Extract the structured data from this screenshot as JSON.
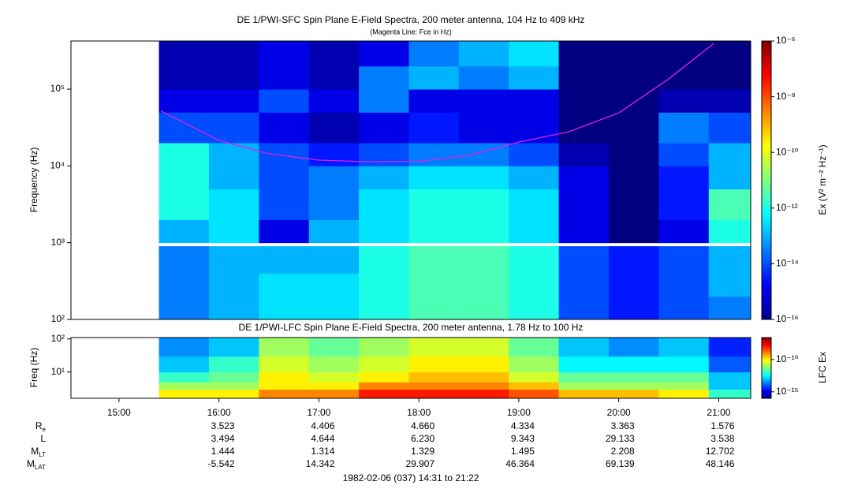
{
  "chart_data": [
    {
      "type": "heatmap",
      "title": "DE 1/PWI-SFC  Spin Plane E-Field Spectra, 200 meter antenna, 104 Hz to 409 kHz",
      "subtitle": "(Magenta Line: Fce in Hz)",
      "y_label": "Frequency (Hz)",
      "ylog": true,
      "xlim": [
        14.52,
        21.32
      ],
      "ylim": [
        100,
        424000
      ],
      "yticks": [
        {
          "value": 100,
          "label": "10²"
        },
        {
          "value": 1000,
          "label": "10³"
        },
        {
          "value": 10000,
          "label": "10⁴"
        },
        {
          "value": 100000,
          "label": "10⁵"
        }
      ],
      "x_bins": [
        15.4,
        15.9,
        16.4,
        16.9,
        17.4,
        17.9,
        18.4,
        18.9,
        19.4,
        19.9,
        20.4,
        20.9,
        21.32
      ],
      "y_bins": [
        100,
        200,
        400,
        900,
        1000,
        2000,
        5000,
        10000,
        20000,
        50000,
        100000,
        200000,
        424000
      ],
      "values": [
        [
          3e-14,
          1e-13,
          3e-13,
          3e-13,
          1e-12,
          3e-12,
          3e-12,
          1e-12,
          1e-14,
          3e-15,
          1e-14,
          3e-14
        ],
        [
          3e-14,
          1e-13,
          3e-13,
          3e-13,
          1e-12,
          3e-12,
          3e-12,
          1e-12,
          1e-14,
          3e-15,
          1e-14,
          1e-13
        ],
        [
          3e-14,
          1e-13,
          1e-13,
          1e-13,
          1e-12,
          3e-12,
          3e-12,
          1e-12,
          1e-14,
          3e-15,
          1e-14,
          1e-13
        ],
        [
          null,
          null,
          null,
          null,
          null,
          null,
          null,
          null,
          null,
          null,
          null,
          null
        ],
        [
          1e-13,
          3e-13,
          1e-15,
          1e-13,
          3e-13,
          1e-12,
          1e-12,
          3e-13,
          1e-15,
          1e-16,
          1e-15,
          1e-12
        ],
        [
          1e-12,
          3e-13,
          1e-14,
          3e-14,
          3e-13,
          1e-12,
          1e-12,
          3e-13,
          1e-15,
          1e-16,
          3e-15,
          3e-12
        ],
        [
          1e-12,
          1e-13,
          1e-14,
          3e-14,
          1e-13,
          3e-13,
          3e-13,
          1e-13,
          1e-15,
          1e-16,
          3e-15,
          1e-13
        ],
        [
          1e-12,
          1e-13,
          1e-14,
          3e-15,
          1e-14,
          3e-14,
          3e-14,
          1e-14,
          3e-16,
          1e-16,
          1e-14,
          1e-13
        ],
        [
          1e-14,
          1e-14,
          1e-15,
          3e-16,
          1e-15,
          3e-15,
          1e-15,
          1e-15,
          1e-16,
          1e-16,
          3e-14,
          1e-14
        ],
        [
          1e-15,
          1e-15,
          1e-14,
          1e-15,
          3e-14,
          1e-15,
          1e-15,
          1e-15,
          1e-16,
          1e-16,
          3e-16,
          3e-16
        ],
        [
          3e-16,
          3e-16,
          1e-15,
          3e-16,
          3e-14,
          1e-13,
          3e-14,
          1e-13,
          1e-16,
          1e-16,
          1e-16,
          1e-16
        ],
        [
          3e-16,
          3e-16,
          1e-15,
          3e-16,
          1e-15,
          3e-14,
          1e-13,
          3e-13,
          1e-16,
          1e-16,
          1e-16,
          1e-16
        ]
      ],
      "clim": [
        1e-16,
        1e-06
      ],
      "cticks": [
        {
          "value": 1e-16,
          "label": "10⁻¹⁶"
        },
        {
          "value": 1e-14,
          "label": "10⁻¹⁴"
        },
        {
          "value": 1e-12,
          "label": "10⁻¹²"
        },
        {
          "value": 1e-10,
          "label": "10⁻¹⁰"
        },
        {
          "value": 1e-08,
          "label": "10⁻⁸"
        },
        {
          "value": 1e-06,
          "label": "10⁻⁶"
        }
      ],
      "colorbar_label": "Ex (V² m⁻² Hz⁻¹)",
      "series": [
        {
          "color": "#e020e0",
          "x": [
            15.42,
            16.0,
            16.5,
            17.0,
            17.5,
            18.0,
            18.5,
            19.0,
            19.5,
            20.0,
            20.5,
            20.95
          ],
          "values": [
            52000,
            21500,
            14400,
            11900,
            11300,
            11500,
            13700,
            20400,
            27900,
            49000,
            136000,
            394000
          ]
        }
      ]
    },
    {
      "type": "heatmap",
      "title": "DE 1/PWI-LFC  Spin Plane E-Field Spectra, 200 meter antenna, 1.78 Hz to 100 Hz",
      "y_label": "Freq (Hz)",
      "ylog": true,
      "xlim": [
        14.52,
        21.32
      ],
      "ylim": [
        1.6,
        110
      ],
      "yticks": [
        {
          "value": 10,
          "label": "10¹"
        },
        {
          "value": 100,
          "label": "10²"
        }
      ],
      "xticks": [
        {
          "value": 15,
          "label": "15:00"
        },
        {
          "value": 16,
          "label": "16:00"
        },
        {
          "value": 17,
          "label": "17:00"
        },
        {
          "value": 18,
          "label": "18:00"
        },
        {
          "value": 19,
          "label": "19:00"
        },
        {
          "value": 20,
          "label": "20:00"
        },
        {
          "value": 21,
          "label": "21:00"
        }
      ],
      "x_bins": [
        15.4,
        15.9,
        16.4,
        16.9,
        17.4,
        17.9,
        18.4,
        18.9,
        19.4,
        19.9,
        20.4,
        20.9,
        21.32
      ],
      "y_bins": [
        1.6,
        3,
        5,
        10,
        30,
        110
      ],
      "values": [
        [
          1e-10,
          1e-10,
          1e-09,
          1e-09,
          1e-08,
          1e-08,
          1e-08,
          3e-09,
          3e-10,
          3e-10,
          1e-10,
          1e-12
        ],
        [
          1e-11,
          1e-11,
          1e-10,
          1e-10,
          1e-09,
          1e-09,
          1e-09,
          3e-10,
          1e-11,
          1e-11,
          1e-11,
          1e-13
        ],
        [
          1e-12,
          3e-12,
          1e-10,
          3e-11,
          1e-10,
          3e-10,
          3e-10,
          3e-11,
          3e-12,
          3e-12,
          3e-12,
          1e-13
        ],
        [
          1e-13,
          1e-12,
          3e-11,
          1e-11,
          3e-11,
          1e-10,
          1e-10,
          1e-11,
          3e-13,
          3e-13,
          3e-13,
          1e-14
        ],
        [
          3e-14,
          1e-13,
          1e-11,
          3e-12,
          1e-11,
          3e-11,
          3e-11,
          3e-12,
          1e-13,
          3e-14,
          1e-13,
          3e-15
        ]
      ],
      "clim": [
        1e-16,
        2.5e-07
      ],
      "cticks": [
        {
          "value": 1e-15,
          "label": "10⁻¹⁵"
        },
        {
          "value": 1e-10,
          "label": "10⁻¹⁰"
        }
      ],
      "colorbar_label": "LFC Ex"
    }
  ],
  "ephemeris": {
    "rows": [
      {
        "label": "R",
        "sub": "e",
        "values": [
          "3.523",
          "4.406",
          "4.660",
          "4.334",
          "3.363",
          "1.576"
        ]
      },
      {
        "label": "L",
        "values": [
          "3.494",
          "4.644",
          "6.230",
          "9.343",
          "29.133",
          "3.538"
        ]
      },
      {
        "label": "M",
        "sub": "LT",
        "values": [
          "1.444",
          "1.314",
          "1.329",
          "1.495",
          "2.208",
          "12.702"
        ]
      },
      {
        "label": "M",
        "sub": "LAT",
        "values": [
          "-5.542",
          "14.342",
          "29.907",
          "46.364",
          "69.139",
          "48.146"
        ]
      }
    ],
    "footer": "1982-02-06 (037) 14:31 to 21:22"
  }
}
